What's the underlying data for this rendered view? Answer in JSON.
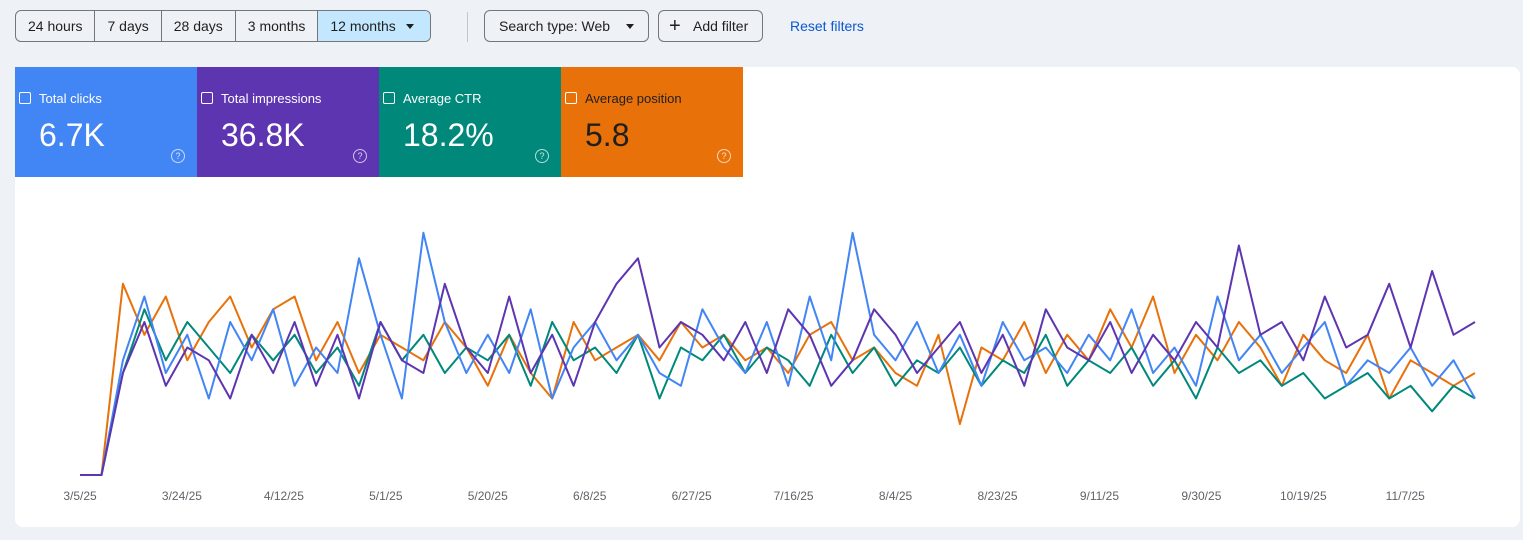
{
  "filters": {
    "date_ranges": [
      "24 hours",
      "7 days",
      "28 days",
      "3 months",
      "12 months"
    ],
    "search_type": "Search type: Web",
    "add_filter": "Add filter",
    "reset": "Reset filters"
  },
  "chart_data": {
    "type": "line",
    "x": [
      0,
      4,
      8,
      12,
      16,
      20,
      24,
      28,
      32,
      36,
      40,
      44,
      48,
      52,
      56,
      60,
      64,
      68,
      72,
      76,
      80,
      84,
      88,
      92,
      96,
      100,
      104,
      108,
      112,
      116,
      120,
      124,
      128,
      132,
      136,
      140,
      144,
      148,
      152,
      156,
      160,
      164,
      168,
      172,
      176,
      180,
      184,
      188,
      192,
      196,
      200,
      204,
      208,
      212,
      216,
      220,
      224,
      228,
      232,
      236,
      240,
      244,
      248,
      252,
      256,
      260
    ],
    "xlim": [
      0,
      260
    ],
    "xticks": [
      {
        "value": 0,
        "label": "3/5/25"
      },
      {
        "value": 19,
        "label": "3/24/25"
      },
      {
        "value": 38,
        "label": "4/12/25"
      },
      {
        "value": 57,
        "label": "5/1/25"
      },
      {
        "value": 76,
        "label": "5/20/25"
      },
      {
        "value": 95,
        "label": "6/8/25"
      },
      {
        "value": 114,
        "label": "6/27/25"
      },
      {
        "value": 133,
        "label": "7/16/25"
      },
      {
        "value": 152,
        "label": "8/4/25"
      },
      {
        "value": 171,
        "label": "8/23/25"
      },
      {
        "value": 190,
        "label": "9/11/25"
      },
      {
        "value": 209,
        "label": "9/30/25"
      },
      {
        "value": 228,
        "label": "10/19/25"
      },
      {
        "value": 247,
        "label": "11/7/25"
      }
    ],
    "ylim": [
      0,
      100
    ],
    "series": [
      {
        "name": "Total clicks",
        "total": "6.7K",
        "color": "#4285f4",
        "values": [
          0,
          0,
          45,
          70,
          40,
          55,
          30,
          60,
          45,
          65,
          35,
          50,
          40,
          85,
          55,
          30,
          95,
          60,
          40,
          55,
          40,
          65,
          30,
          50,
          60,
          45,
          55,
          40,
          35,
          65,
          50,
          40,
          60,
          35,
          70,
          45,
          95,
          55,
          45,
          60,
          40,
          55,
          35,
          60,
          45,
          50,
          40,
          55,
          45,
          65,
          40,
          50,
          35,
          70,
          45,
          55,
          40,
          50,
          60,
          35,
          45,
          40,
          50,
          35,
          45,
          30
        ]
      },
      {
        "name": "Total impressions",
        "total": "36.8K",
        "color": "#5e35b1",
        "values": [
          0,
          0,
          40,
          60,
          35,
          50,
          45,
          30,
          55,
          40,
          60,
          35,
          55,
          30,
          60,
          45,
          40,
          75,
          50,
          40,
          70,
          40,
          55,
          35,
          60,
          75,
          85,
          50,
          60,
          55,
          45,
          60,
          40,
          65,
          55,
          35,
          45,
          65,
          55,
          40,
          50,
          60,
          40,
          55,
          35,
          65,
          50,
          45,
          60,
          40,
          55,
          45,
          60,
          50,
          90,
          55,
          60,
          45,
          70,
          50,
          55,
          75,
          50,
          80,
          55,
          60
        ]
      },
      {
        "name": "Average CTR",
        "total": "18.2%",
        "color": "#00897b",
        "values": [
          0,
          0,
          40,
          65,
          45,
          60,
          50,
          40,
          55,
          45,
          55,
          40,
          50,
          35,
          60,
          45,
          55,
          40,
          50,
          45,
          55,
          35,
          60,
          45,
          50,
          40,
          55,
          30,
          50,
          45,
          55,
          40,
          50,
          45,
          35,
          55,
          40,
          50,
          35,
          45,
          40,
          50,
          35,
          45,
          40,
          55,
          35,
          45,
          40,
          50,
          35,
          45,
          30,
          50,
          40,
          45,
          35,
          40,
          30,
          35,
          40,
          30,
          35,
          25,
          35,
          30
        ]
      },
      {
        "name": "Average position",
        "total": "5.8",
        "color": "#e8710a",
        "values": [
          0,
          0,
          75,
          55,
          70,
          45,
          60,
          70,
          50,
          65,
          70,
          45,
          60,
          40,
          55,
          50,
          45,
          60,
          50,
          35,
          55,
          40,
          30,
          60,
          45,
          50,
          55,
          45,
          60,
          50,
          55,
          45,
          50,
          40,
          55,
          60,
          45,
          50,
          40,
          35,
          55,
          20,
          50,
          45,
          60,
          40,
          55,
          45,
          65,
          50,
          70,
          40,
          55,
          45,
          60,
          50,
          35,
          55,
          45,
          40,
          55,
          30,
          45,
          40,
          35,
          40
        ]
      }
    ]
  }
}
